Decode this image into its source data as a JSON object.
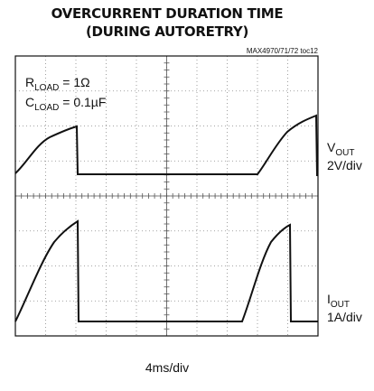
{
  "chart_data": {
    "type": "scope",
    "title": [
      "OVERCURRENT DURATION TIME",
      "(DURING AUTORETRY)"
    ],
    "figure_id": "MAX4970/71/72 toc12",
    "conditions": [
      [
        "R",
        "LOAD",
        " = 1Ω"
      ],
      [
        "C",
        "LOAD",
        " = 0.1µF"
      ]
    ],
    "channels": [
      {
        "symbol": "V",
        "subscript": "OUT",
        "scale": "2V/div"
      },
      {
        "symbol": "I",
        "subscript": "OUT",
        "scale": "1A/div"
      }
    ],
    "time_scale": "4ms/div"
  }
}
